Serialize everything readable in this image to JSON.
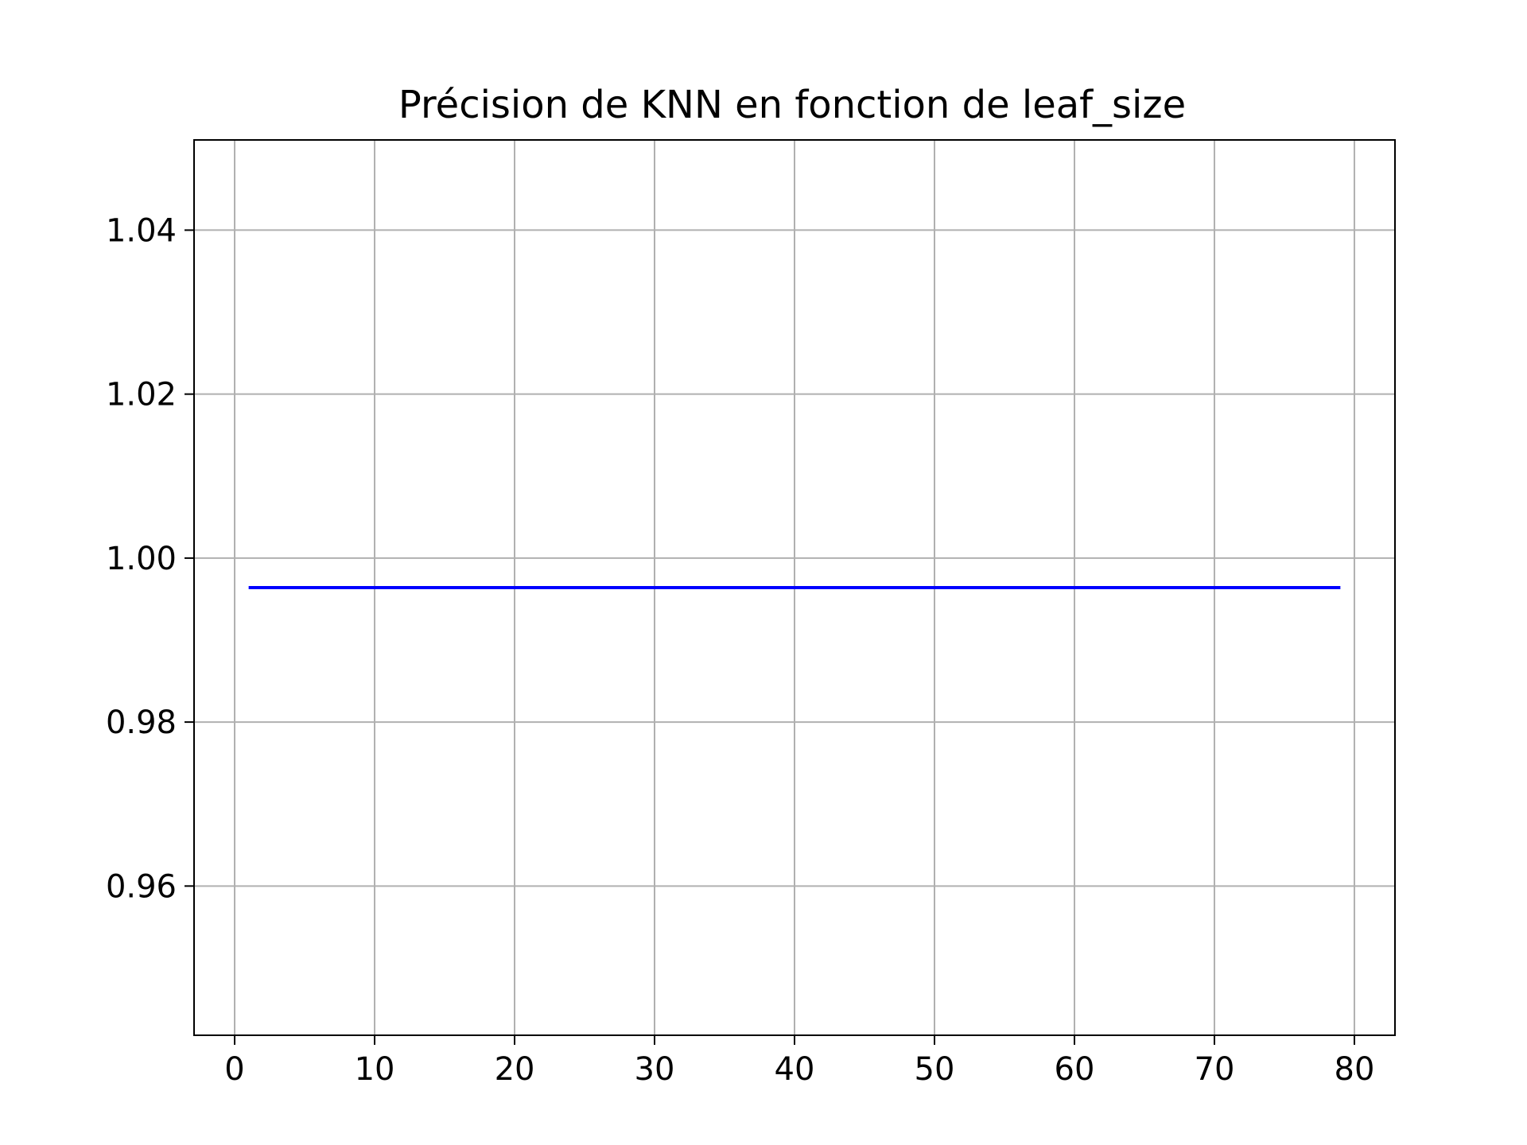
{
  "chart_data": {
    "type": "line",
    "title": "Précision de KNN en fonction de leaf_size",
    "xlabel": "",
    "ylabel": "",
    "xlim": [
      -2.9,
      82.9
    ],
    "ylim": [
      0.9418,
      1.051
    ],
    "xticks": [
      0,
      10,
      20,
      30,
      40,
      50,
      60,
      70,
      80
    ],
    "yticks": [
      0.96,
      0.98,
      1.0,
      1.02,
      1.04
    ],
    "ytick_labels": [
      "0.96",
      "0.98",
      "1.00",
      "1.02",
      "1.04"
    ],
    "grid": true,
    "series": [
      {
        "color": "#0000ff",
        "x": [
          1,
          79
        ],
        "y": [
          0.9964,
          0.9964
        ]
      }
    ]
  },
  "colors": {
    "grid": "#b0b0b0",
    "axis": "#000000",
    "background": "#ffffff"
  }
}
